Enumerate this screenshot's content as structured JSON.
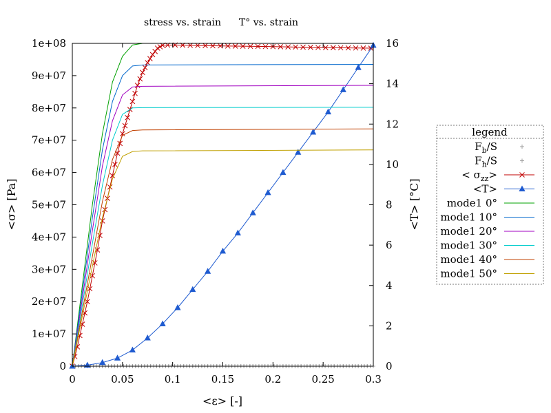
{
  "chart_data": {
    "type": "line",
    "title_left": "stress vs. strain",
    "title_right": "T° vs. strain",
    "xlabel": "<ε> [-]",
    "ylabel": "<σ> [Pa]",
    "y2label": "<T> [°C]",
    "xlim": [
      0,
      0.3
    ],
    "ylim": [
      0,
      100000000
    ],
    "y2lim": [
      0,
      16
    ],
    "xticks": [
      "0",
      "0.05",
      "0.1",
      "0.15",
      "0.2",
      "0.25",
      "0.3"
    ],
    "yticks": [
      "0",
      "1e+07",
      "2e+07",
      "3e+07",
      "4e+07",
      "5e+07",
      "6e+07",
      "7e+07",
      "8e+07",
      "9e+07",
      "1e+08"
    ],
    "y2ticks": [
      "0",
      "2",
      "4",
      "6",
      "8",
      "10",
      "12",
      "14",
      "16"
    ],
    "grid": false,
    "legend_title": "legend",
    "legend_position": "right",
    "series": [
      {
        "key": "fb",
        "name_main": "F",
        "name_sub": "b",
        "name_tail": "/S",
        "color": "#a0a0a0",
        "marker": "plus",
        "axis": "y",
        "pts": [
          [
            0,
            0
          ],
          [
            0.3,
            0
          ]
        ]
      },
      {
        "key": "fh",
        "name_main": "F",
        "name_sub": "h",
        "name_tail": "/S",
        "color": "#a0a0a0",
        "marker": "plus",
        "axis": "y",
        "pts": [
          [
            0,
            0
          ],
          [
            0.3,
            0
          ]
        ]
      },
      {
        "key": "szz",
        "name_main": "< σ",
        "name_sub": "zz",
        "name_tail": ">",
        "color": "#c00000",
        "marker": "cross",
        "axis": "y",
        "pts": [
          [
            0,
            0
          ],
          [
            0.005,
            6000000
          ],
          [
            0.01,
            13000000
          ],
          [
            0.015,
            20000000
          ],
          [
            0.02,
            28000000
          ],
          [
            0.025,
            36000000
          ],
          [
            0.03,
            45000000
          ],
          [
            0.035,
            52000000
          ],
          [
            0.04,
            59000000
          ],
          [
            0.045,
            66000000
          ],
          [
            0.05,
            72000000
          ],
          [
            0.055,
            77000000
          ],
          [
            0.06,
            82000000
          ],
          [
            0.065,
            87000000
          ],
          [
            0.07,
            91000000
          ],
          [
            0.075,
            94000000
          ],
          [
            0.08,
            96500000
          ],
          [
            0.085,
            98500000
          ],
          [
            0.09,
            99400000
          ],
          [
            0.1,
            99500000
          ],
          [
            0.15,
            99200000
          ],
          [
            0.2,
            99000000
          ],
          [
            0.25,
            98700000
          ],
          [
            0.3,
            98500000
          ]
        ]
      },
      {
        "key": "t",
        "name_main": "<T>",
        "name_sub": "",
        "name_tail": "",
        "color": "#1f5bd0",
        "marker": "triangle",
        "axis": "y2",
        "pts": [
          [
            0,
            0
          ],
          [
            0.015,
            0.05
          ],
          [
            0.03,
            0.18
          ],
          [
            0.045,
            0.4
          ],
          [
            0.06,
            0.8
          ],
          [
            0.075,
            1.4
          ],
          [
            0.09,
            2.1
          ],
          [
            0.105,
            2.9
          ],
          [
            0.12,
            3.8
          ],
          [
            0.135,
            4.7
          ],
          [
            0.15,
            5.7
          ],
          [
            0.165,
            6.6
          ],
          [
            0.18,
            7.6
          ],
          [
            0.195,
            8.6
          ],
          [
            0.21,
            9.6
          ],
          [
            0.225,
            10.6
          ],
          [
            0.24,
            11.6
          ],
          [
            0.255,
            12.6
          ],
          [
            0.27,
            13.7
          ],
          [
            0.285,
            14.8
          ],
          [
            0.3,
            15.9
          ]
        ]
      },
      {
        "key": "m0",
        "name_main": "mode1 0°",
        "name_sub": "",
        "name_tail": "",
        "color": "#00a000",
        "marker": "none",
        "axis": "y",
        "pts": [
          [
            0,
            0
          ],
          [
            0.01,
            25000000
          ],
          [
            0.02,
            50000000
          ],
          [
            0.03,
            72000000
          ],
          [
            0.04,
            88000000
          ],
          [
            0.05,
            96000000
          ],
          [
            0.06,
            99500000
          ],
          [
            0.07,
            100000000
          ],
          [
            0.3,
            100000000
          ]
        ]
      },
      {
        "key": "m10",
        "name_main": "mode1 10°",
        "name_sub": "",
        "name_tail": "",
        "color": "#0066cc",
        "marker": "none",
        "axis": "y",
        "pts": [
          [
            0,
            0
          ],
          [
            0.01,
            23000000
          ],
          [
            0.02,
            46000000
          ],
          [
            0.03,
            67000000
          ],
          [
            0.04,
            82000000
          ],
          [
            0.05,
            90000000
          ],
          [
            0.06,
            93000000
          ],
          [
            0.07,
            93300000
          ],
          [
            0.3,
            93500000
          ]
        ]
      },
      {
        "key": "m20",
        "name_main": "mode1 20°",
        "name_sub": "",
        "name_tail": "",
        "color": "#a000c0",
        "marker": "none",
        "axis": "y",
        "pts": [
          [
            0,
            0
          ],
          [
            0.01,
            21000000
          ],
          [
            0.02,
            42000000
          ],
          [
            0.03,
            62000000
          ],
          [
            0.04,
            76000000
          ],
          [
            0.05,
            84000000
          ],
          [
            0.06,
            86500000
          ],
          [
            0.07,
            86700000
          ],
          [
            0.3,
            87000000
          ]
        ]
      },
      {
        "key": "m30",
        "name_main": "mode1 30°",
        "name_sub": "",
        "name_tail": "",
        "color": "#00cccc",
        "marker": "none",
        "axis": "y",
        "pts": [
          [
            0,
            0
          ],
          [
            0.01,
            19000000
          ],
          [
            0.02,
            38000000
          ],
          [
            0.03,
            56000000
          ],
          [
            0.04,
            70000000
          ],
          [
            0.05,
            78000000
          ],
          [
            0.06,
            80000000
          ],
          [
            0.07,
            80100000
          ],
          [
            0.3,
            80200000
          ]
        ]
      },
      {
        "key": "m40",
        "name_main": "mode1 40°",
        "name_sub": "",
        "name_tail": "",
        "color": "#c04000",
        "marker": "none",
        "axis": "y",
        "pts": [
          [
            0,
            0
          ],
          [
            0.01,
            17000000
          ],
          [
            0.02,
            34000000
          ],
          [
            0.03,
            51000000
          ],
          [
            0.04,
            64000000
          ],
          [
            0.05,
            71500000
          ],
          [
            0.06,
            73000000
          ],
          [
            0.07,
            73200000
          ],
          [
            0.3,
            73500000
          ]
        ]
      },
      {
        "key": "m50",
        "name_main": "mode1 50°",
        "name_sub": "",
        "name_tail": "",
        "color": "#c0a000",
        "marker": "none",
        "axis": "y",
        "pts": [
          [
            0,
            0
          ],
          [
            0.01,
            15500000
          ],
          [
            0.02,
            31000000
          ],
          [
            0.03,
            46000000
          ],
          [
            0.04,
            58000000
          ],
          [
            0.05,
            65000000
          ],
          [
            0.06,
            66500000
          ],
          [
            0.07,
            66700000
          ],
          [
            0.3,
            67000000
          ]
        ]
      }
    ]
  }
}
